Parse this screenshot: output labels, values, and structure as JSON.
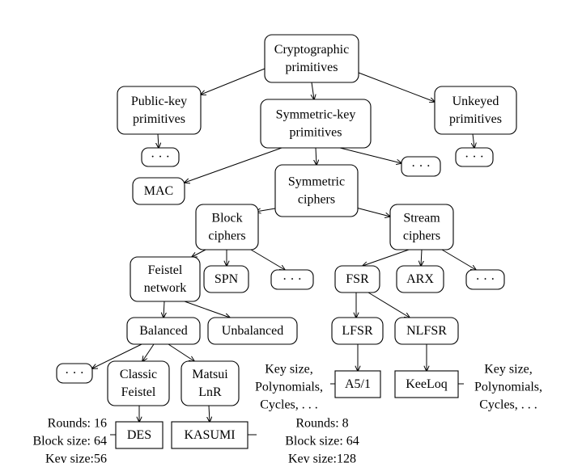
{
  "nodes": {
    "crypto": [
      "Cryptographic",
      "primitives"
    ],
    "public_key": [
      "Public-key",
      "primitives"
    ],
    "symmetric_key": [
      "Symmetric-key",
      "primitives"
    ],
    "unkeyed": [
      "Unkeyed",
      "primitives"
    ],
    "public_dots": [
      "· · ·"
    ],
    "unkeyed_dots": [
      "· · ·"
    ],
    "symkey_dots": [
      "· · ·"
    ],
    "mac": [
      "MAC"
    ],
    "symmetric_ciphers": [
      "Symmetric",
      "ciphers"
    ],
    "block_ciphers": [
      "Block",
      "ciphers"
    ],
    "stream_ciphers": [
      "Stream",
      "ciphers"
    ],
    "feistel": [
      "Feistel",
      "network"
    ],
    "spn": [
      "SPN"
    ],
    "block_dots": [
      "· · ·"
    ],
    "fsr": [
      "FSR"
    ],
    "arx": [
      "ARX"
    ],
    "stream_dots": [
      "· · ·"
    ],
    "balanced": [
      "Balanced"
    ],
    "unbalanced": [
      "Unbalanced"
    ],
    "lfsr": [
      "LFSR"
    ],
    "nlfsr": [
      "NLFSR"
    ],
    "balanced_dots": [
      "· · ·"
    ],
    "classic_feistel": [
      "Classic",
      "Feistel"
    ],
    "matsui": [
      "Matsui",
      "LnR"
    ],
    "a51": [
      "A5/1"
    ],
    "keeloq": [
      "KeeLoq"
    ],
    "des": [
      "DES"
    ],
    "kasumi": [
      "KASUMI"
    ]
  },
  "annotations": {
    "a51_params": [
      "Key size,",
      "Polynomials,",
      "Cycles, . . ."
    ],
    "keeloq_params": [
      "Key size,",
      "Polynomials,",
      "Cycles, . . ."
    ],
    "des_params": [
      "Rounds: 16",
      "Block size: 64",
      "Key size:56"
    ],
    "kasumi_params": [
      "Rounds: 8",
      "Block size: 64",
      "Key size:128"
    ]
  }
}
